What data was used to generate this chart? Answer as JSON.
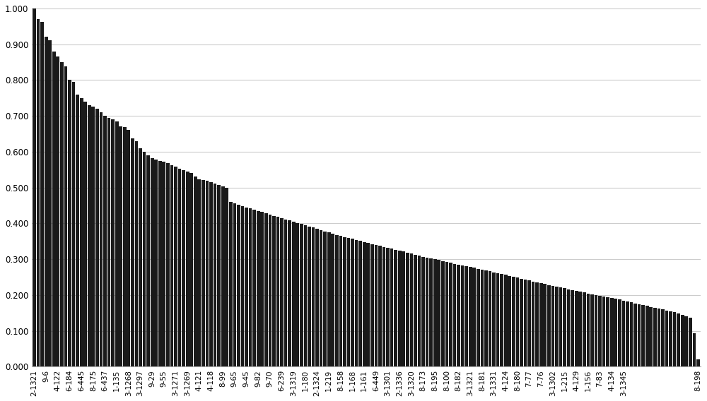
{
  "categories": [
    "2-1321",
    "9-6",
    "9-6",
    "4-122",
    "6-184",
    "6-445",
    "8-175",
    "6-437",
    "1-135",
    "3-1268",
    "3-1297",
    "9-29",
    "9-55",
    "3-1271",
    "3-1269",
    "4-121",
    "4-118",
    "8-99",
    "9-65",
    "9-45",
    "9-82",
    "9-70",
    "6-239",
    "3-1319",
    "1-180",
    "2-1324",
    "1-219",
    "8-158",
    "1-168",
    "1-161",
    "6-449",
    "3-1301",
    "2-1336",
    "3-1320",
    "8-173",
    "8-195",
    "8-100",
    "8-182",
    "3-1321",
    "8-181",
    "3-1331",
    "4-124",
    "8-180",
    "7-77",
    "7-76",
    "3-1302",
    "1-215",
    "4-129",
    "1-156",
    "7-83",
    "4-134",
    "3-1345",
    "8-198"
  ],
  "values": [
    1.0,
    0.97,
    0.963,
    0.922,
    0.912,
    0.88,
    0.865,
    0.85,
    0.838,
    0.8,
    0.795,
    0.76,
    0.75,
    0.74,
    0.73,
    0.725,
    0.72,
    0.71,
    0.7,
    0.695,
    0.69,
    0.685,
    0.67,
    0.668,
    0.66,
    0.638,
    0.63,
    0.61,
    0.6,
    0.59,
    0.582,
    0.578,
    0.575,
    0.572,
    0.568,
    0.562,
    0.558,
    0.552,
    0.548,
    0.545,
    0.541,
    0.53,
    0.523,
    0.521,
    0.518,
    0.515,
    0.512,
    0.508,
    0.503,
    0.5,
    0.46,
    0.456,
    0.452,
    0.448,
    0.445,
    0.442,
    0.438,
    0.435,
    0.432,
    0.428,
    0.425,
    0.421,
    0.418,
    0.415,
    0.411,
    0.408,
    0.404,
    0.401,
    0.398,
    0.394,
    0.391,
    0.388,
    0.385,
    0.381,
    0.378,
    0.375,
    0.372,
    0.368,
    0.365,
    0.362,
    0.36,
    0.357,
    0.354,
    0.351,
    0.348,
    0.345,
    0.342,
    0.34,
    0.337,
    0.334,
    0.332,
    0.329,
    0.326,
    0.323,
    0.321,
    0.318,
    0.315,
    0.312,
    0.31,
    0.307,
    0.305,
    0.302,
    0.3,
    0.298,
    0.295,
    0.292,
    0.29,
    0.287,
    0.285,
    0.282,
    0.28,
    0.278,
    0.276,
    0.273,
    0.271,
    0.268,
    0.266,
    0.263,
    0.261,
    0.258,
    0.256,
    0.253,
    0.251,
    0.248,
    0.246,
    0.243,
    0.241,
    0.238,
    0.236,
    0.233,
    0.231,
    0.228,
    0.226,
    0.224,
    0.221,
    0.219,
    0.216,
    0.214,
    0.211,
    0.209,
    0.207,
    0.204,
    0.202,
    0.2,
    0.198,
    0.196,
    0.194,
    0.191,
    0.189,
    0.187,
    0.184,
    0.182,
    0.18,
    0.177,
    0.175,
    0.172,
    0.17,
    0.167,
    0.165,
    0.162,
    0.16,
    0.157,
    0.155,
    0.152,
    0.148,
    0.144,
    0.14,
    0.136,
    0.094,
    0.02
  ],
  "tick_labels": {
    "0": "2-1321",
    "3": "9-6",
    "6": "4-122",
    "9": "6-184",
    "12": "6-445",
    "15": "8-175",
    "18": "6-437",
    "21": "1-135",
    "24": "3-1268",
    "27": "3-1297",
    "30": "9-29",
    "33": "9-55",
    "36": "3-1271",
    "39": "3-1269",
    "42": "4-121",
    "45": "4-118",
    "48": "8-99",
    "51": "9-65",
    "54": "9-45",
    "57": "9-82",
    "60": "9-70",
    "63": "6-239",
    "66": "3-1319",
    "69": "1-180",
    "72": "2-1324",
    "75": "1-219",
    "78": "8-158",
    "81": "1-168",
    "84": "1-161",
    "87": "6-449",
    "90": "3-1301",
    "93": "2-1336",
    "96": "3-1320",
    "99": "8-173",
    "102": "8-195",
    "105": "8-100",
    "108": "8-182",
    "111": "3-1321",
    "114": "8-181",
    "117": "3-1331",
    "120": "4-124",
    "123": "8-180",
    "126": "7-77",
    "129": "7-76",
    "132": "3-1302",
    "135": "1-215",
    "138": "4-129",
    "141": "1-156",
    "144": "7-83",
    "147": "4-134",
    "150": "3-1345",
    "169": "8-198"
  },
  "bar_color": "#1a1a1a",
  "background_color": "#ffffff",
  "ylim": [
    0.0,
    1.0
  ],
  "yticks": [
    0.0,
    0.1,
    0.2,
    0.3,
    0.4,
    0.5,
    0.6,
    0.7,
    0.8,
    0.9,
    1.0
  ],
  "grid_color": "#cccccc",
  "tick_label_fontsize": 7.5
}
